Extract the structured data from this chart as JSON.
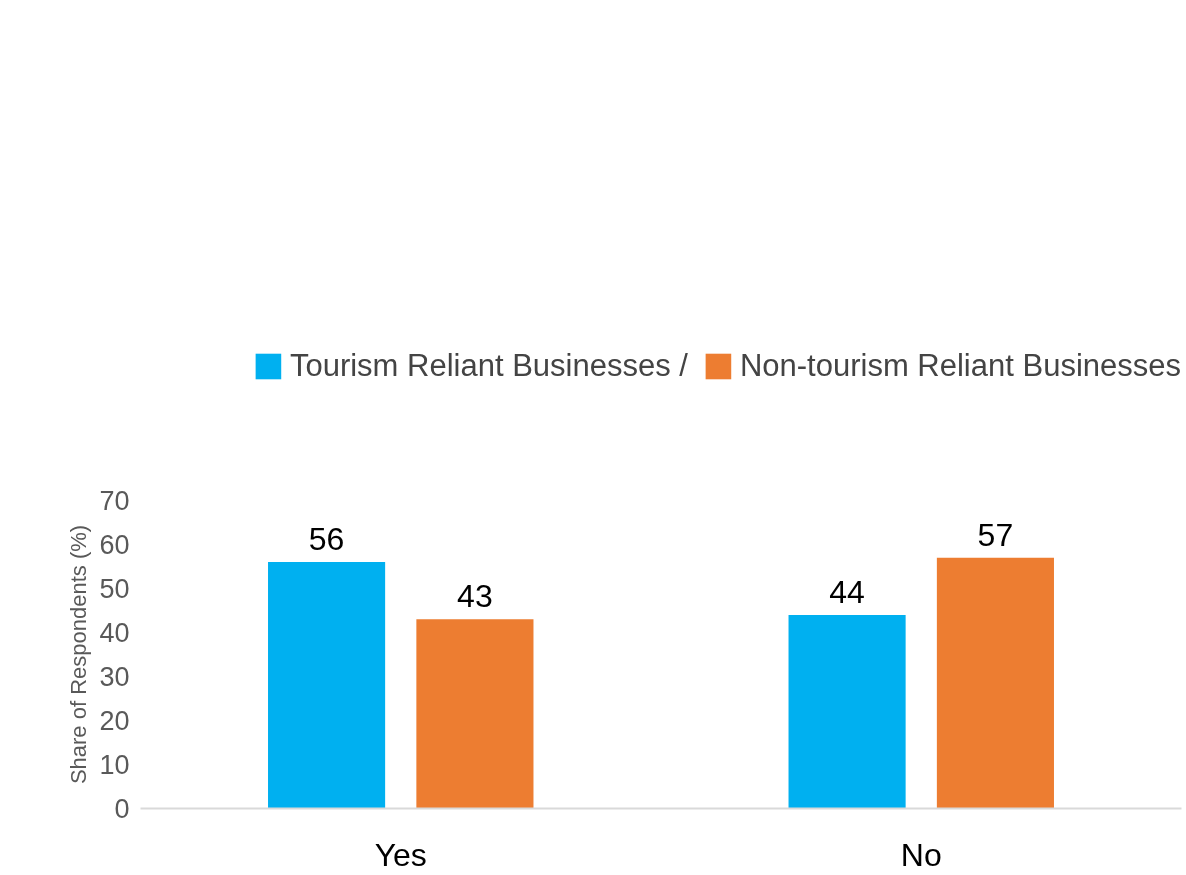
{
  "chart_data": {
    "type": "bar",
    "ylabel": "Share of Respondents (%)",
    "categories": [
      "Yes",
      "No"
    ],
    "series": [
      {
        "name": "Tourism Reliant Businesses /",
        "color": "#00b0f0",
        "values": [
          56,
          44
        ]
      },
      {
        "name": "Non-tourism Reliant Businesses",
        "color": "#ed7d31",
        "values": [
          43,
          57
        ]
      }
    ],
    "ylim": [
      0,
      70
    ],
    "yticks": [
      0,
      10,
      20,
      30,
      40,
      50,
      60,
      70
    ],
    "grid": false,
    "legend": "top",
    "data_labels": true
  }
}
